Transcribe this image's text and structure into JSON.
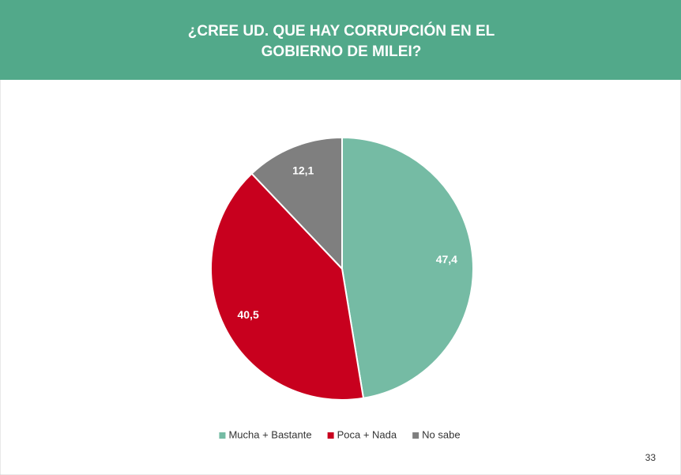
{
  "chart_data": {
    "type": "pie",
    "title": [
      "¿CREE UD. QUE HAY CORRUPCIÓN EN EL",
      "GOBIERNO DE MILEI?"
    ],
    "categories": [
      "Mucha + Bastante",
      "Poca + Nada",
      "No sabe"
    ],
    "values": [
      47.4,
      40.5,
      12.1
    ],
    "value_labels": [
      "47,4",
      "40,5",
      "12,1"
    ],
    "colors": [
      "#75bba4",
      "#c8001e",
      "#7f7f7f"
    ],
    "legend": "bottom"
  },
  "page_number": "33"
}
